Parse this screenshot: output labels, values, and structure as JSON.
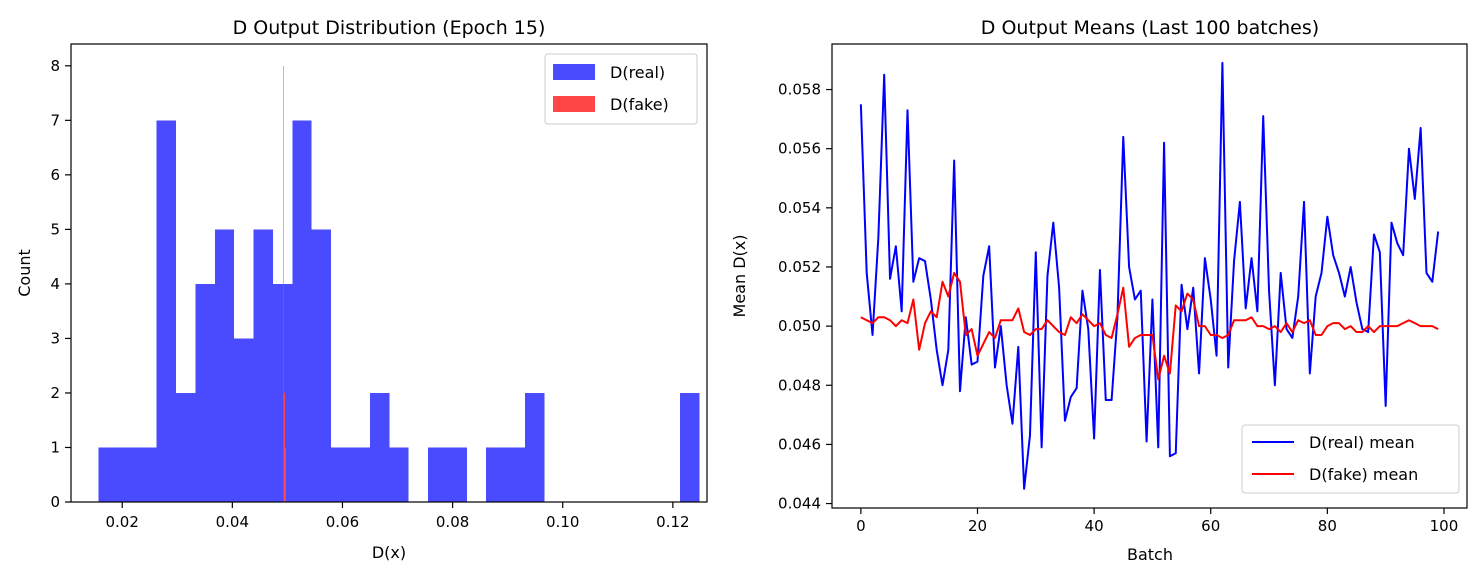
{
  "chart_data": [
    {
      "type": "histogram",
      "title": "D Output Distribution (Epoch 15)",
      "xlabel": "D(x)",
      "ylabel": "Count",
      "xlim": [
        0.0107,
        0.1262
      ],
      "ylim": [
        0,
        8.4
      ],
      "xticks": [
        "0.02",
        "0.04",
        "0.06",
        "0.08",
        "0.10",
        "0.12"
      ],
      "xtick_values": [
        0.02,
        0.04,
        0.06,
        0.08,
        0.1,
        0.12
      ],
      "yticks": [
        "0",
        "1",
        "2",
        "3",
        "4",
        "5",
        "6",
        "7",
        "8"
      ],
      "ytick_values": [
        0,
        1,
        2,
        3,
        4,
        5,
        6,
        7,
        8
      ],
      "legend_position": "top-right",
      "series": [
        {
          "name": "D(real)",
          "color": "#4a4aff",
          "bin_start": 0.0157,
          "bin_width": 0.00352,
          "counts": [
            1,
            1,
            1,
            7,
            2,
            4,
            5,
            3,
            5,
            4,
            7,
            5,
            1,
            1,
            2,
            1,
            0,
            1,
            1,
            0,
            1,
            1,
            2,
            0,
            0,
            0,
            0,
            0,
            0,
            0,
            2
          ]
        },
        {
          "name": "D(fake)",
          "color": "#ff4646",
          "bin_start": 0.04925,
          "bin_width": 4e-05,
          "counts": [
            7,
            8,
            2,
            0,
            2,
            0,
            1,
            0,
            1,
            1
          ]
        }
      ]
    },
    {
      "type": "line",
      "title": "D Output Means (Last 100 batches)",
      "xlabel": "Batch",
      "ylabel": "Mean D(x)",
      "xlim": [
        -4.95,
        103.95
      ],
      "ylim": [
        0.04385,
        0.05954
      ],
      "xticks": [
        "0",
        "20",
        "40",
        "60",
        "80",
        "100"
      ],
      "xtick_values": [
        0,
        20,
        40,
        60,
        80,
        100
      ],
      "yticks": [
        "0.044",
        "0.046",
        "0.048",
        "0.050",
        "0.052",
        "0.054",
        "0.056",
        "0.058"
      ],
      "ytick_values": [
        0.044,
        0.046,
        0.048,
        0.05,
        0.052,
        0.054,
        0.056,
        0.058
      ],
      "legend_position": "bottom-right",
      "series": [
        {
          "name": "D(real) mean",
          "color": "#0000ff",
          "x": [
            0,
            1,
            2,
            3,
            4,
            5,
            6,
            7,
            8,
            9,
            10,
            11,
            12,
            13,
            14,
            15,
            16,
            17,
            18,
            19,
            20,
            21,
            22,
            23,
            24,
            25,
            26,
            27,
            28,
            29,
            30,
            31,
            32,
            33,
            34,
            35,
            36,
            37,
            38,
            39,
            40,
            41,
            42,
            43,
            44,
            45,
            46,
            47,
            48,
            49,
            50,
            51,
            52,
            53,
            54,
            55,
            56,
            57,
            58,
            59,
            60,
            61,
            62,
            63,
            64,
            65,
            66,
            67,
            68,
            69,
            70,
            71,
            72,
            73,
            74,
            75,
            76,
            77,
            78,
            79,
            80,
            81,
            82,
            83,
            84,
            85,
            86,
            87,
            88,
            89,
            90,
            91,
            92,
            93,
            94,
            95,
            96,
            97,
            98,
            99
          ],
          "values": [
            0.0575,
            0.0518,
            0.0497,
            0.053,
            0.0585,
            0.0516,
            0.0527,
            0.0505,
            0.0573,
            0.0515,
            0.0523,
            0.0522,
            0.0509,
            0.0492,
            0.048,
            0.0492,
            0.0556,
            0.0478,
            0.0503,
            0.0487,
            0.0488,
            0.0517,
            0.0527,
            0.0486,
            0.05,
            0.048,
            0.0467,
            0.0493,
            0.0445,
            0.0463,
            0.0525,
            0.0459,
            0.0517,
            0.0535,
            0.0513,
            0.0468,
            0.0476,
            0.0479,
            0.0512,
            0.0499,
            0.0462,
            0.0519,
            0.0475,
            0.0475,
            0.0503,
            0.0564,
            0.052,
            0.0509,
            0.0512,
            0.0461,
            0.0509,
            0.0459,
            0.0562,
            0.0456,
            0.0457,
            0.0514,
            0.0499,
            0.0513,
            0.0484,
            0.0523,
            0.0509,
            0.049,
            0.0589,
            0.0486,
            0.0522,
            0.0542,
            0.0506,
            0.0523,
            0.0505,
            0.0571,
            0.0512,
            0.048,
            0.0518,
            0.0499,
            0.0496,
            0.051,
            0.0542,
            0.0484,
            0.051,
            0.0518,
            0.0537,
            0.0524,
            0.0518,
            0.051,
            0.052,
            0.0508,
            0.0499,
            0.0498,
            0.0531,
            0.0525,
            0.0473,
            0.0535,
            0.0528,
            0.0524,
            0.056,
            0.0543,
            0.0567,
            0.0518,
            0.0515,
            0.0532
          ]
        },
        {
          "name": "D(fake) mean",
          "color": "#ff0000",
          "x": [
            0,
            1,
            2,
            3,
            4,
            5,
            6,
            7,
            8,
            9,
            10,
            11,
            12,
            13,
            14,
            15,
            16,
            17,
            18,
            19,
            20,
            21,
            22,
            23,
            24,
            25,
            26,
            27,
            28,
            29,
            30,
            31,
            32,
            33,
            34,
            35,
            36,
            37,
            38,
            39,
            40,
            41,
            42,
            43,
            44,
            45,
            46,
            47,
            48,
            49,
            50,
            51,
            52,
            53,
            54,
            55,
            56,
            57,
            58,
            59,
            60,
            61,
            62,
            63,
            64,
            65,
            66,
            67,
            68,
            69,
            70,
            71,
            72,
            73,
            74,
            75,
            76,
            77,
            78,
            79,
            80,
            81,
            82,
            83,
            84,
            85,
            86,
            87,
            88,
            89,
            90,
            91,
            92,
            93,
            94,
            95,
            96,
            97,
            98,
            99
          ],
          "values": [
            0.0503,
            0.0502,
            0.0501,
            0.0503,
            0.0503,
            0.0502,
            0.05,
            0.0502,
            0.0501,
            0.0509,
            0.0492,
            0.0501,
            0.0505,
            0.0503,
            0.0515,
            0.051,
            0.0518,
            0.0515,
            0.0497,
            0.0499,
            0.049,
            0.0494,
            0.0498,
            0.0496,
            0.0502,
            0.0502,
            0.0502,
            0.0506,
            0.0498,
            0.0497,
            0.0499,
            0.0499,
            0.0502,
            0.05,
            0.0498,
            0.0497,
            0.0503,
            0.0501,
            0.0504,
            0.0502,
            0.05,
            0.0501,
            0.0497,
            0.0496,
            0.0504,
            0.0513,
            0.0493,
            0.0496,
            0.0497,
            0.0497,
            0.0497,
            0.0482,
            0.049,
            0.0484,
            0.0507,
            0.0505,
            0.0511,
            0.0509,
            0.05,
            0.05,
            0.0497,
            0.0497,
            0.0496,
            0.0497,
            0.0502,
            0.0502,
            0.0502,
            0.0503,
            0.05,
            0.05,
            0.0499,
            0.05,
            0.0498,
            0.0501,
            0.0498,
            0.0502,
            0.0501,
            0.0502,
            0.0497,
            0.0497,
            0.05,
            0.0501,
            0.0501,
            0.0499,
            0.05,
            0.0498,
            0.0498,
            0.05,
            0.0498,
            0.05,
            0.05,
            0.05,
            0.05,
            0.0501,
            0.0502,
            0.0501,
            0.05,
            0.05,
            0.05,
            0.0499
          ]
        }
      ]
    }
  ]
}
